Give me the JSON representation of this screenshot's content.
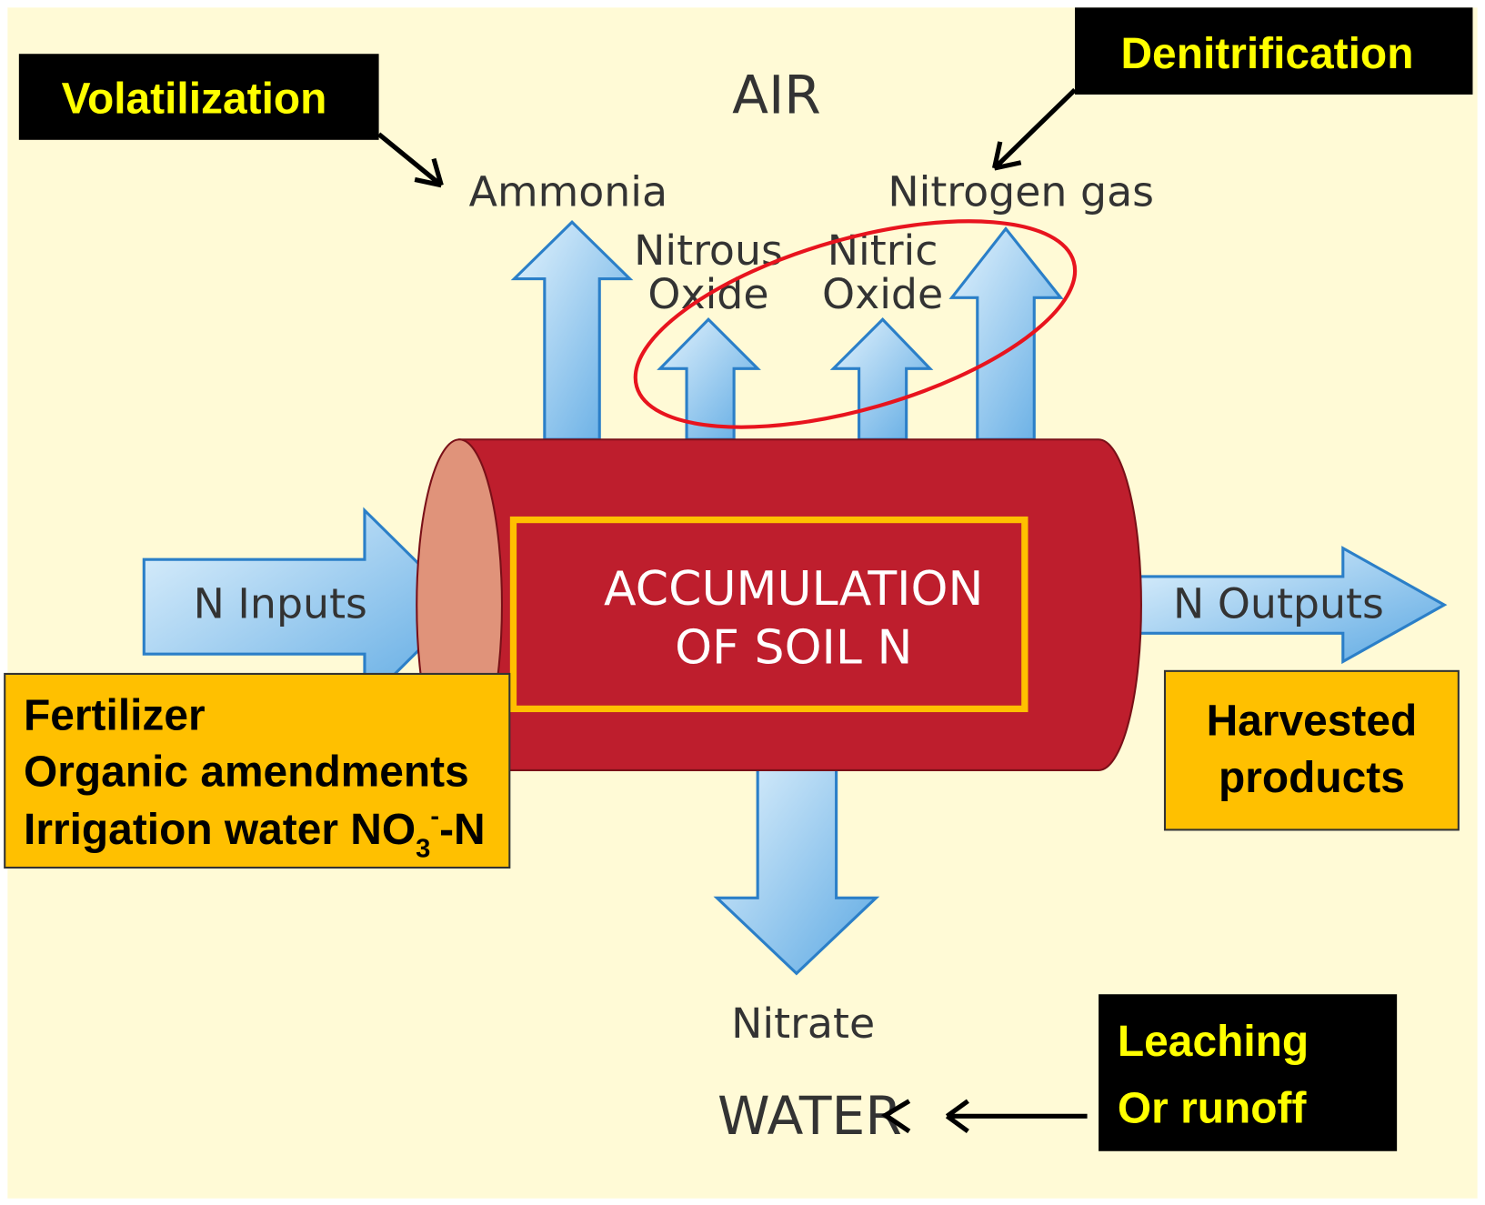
{
  "labels": {
    "air": "AIR",
    "water": "WATER",
    "ammonia": "Ammonia",
    "nitrous_oxide": [
      "Nitrous",
      "Oxide"
    ],
    "nitric_oxide": [
      "Nitric",
      "Oxide"
    ],
    "nitrogen_gas": "Nitrogen gas",
    "nitrate": "Nitrate",
    "n_inputs": "N Inputs",
    "n_outputs": "N Outputs",
    "accumulation": [
      "ACCUMULATION",
      "OF SOIL N"
    ]
  },
  "processes": {
    "volatilization": "Volatilization",
    "denitrification": "Denitrification",
    "leaching": [
      "Leaching",
      "Or runoff"
    ]
  },
  "inputs_box": {
    "lines": [
      "Fertilizer",
      "Organic amendments"
    ],
    "irrigation": {
      "text": "Irrigation water NO",
      "sub": "3",
      "sup": "-",
      "tail": "-N"
    }
  },
  "outputs_box": {
    "lines": [
      "Harvested",
      "products"
    ]
  }
}
